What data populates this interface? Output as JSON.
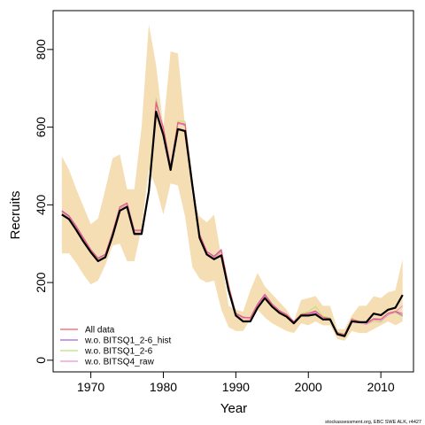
{
  "chart_data": {
    "type": "line",
    "xlabel": "Year",
    "ylabel": "Recruits",
    "xlim": [
      1964.8,
      2014.5
    ],
    "ylim": [
      -30,
      900
    ],
    "xticks": [
      1970,
      1980,
      1990,
      2000,
      2010
    ],
    "yticks": [
      0,
      200,
      400,
      600,
      800
    ],
    "xtick_labels": [
      "1970",
      "1980",
      "1990",
      "2000",
      "2010"
    ],
    "ytick_labels": [
      "0",
      "200",
      "400",
      "600",
      "800"
    ],
    "grid": false,
    "legend_position": "bottom-left",
    "x": [
      1966,
      1967,
      1968,
      1969,
      1970,
      1971,
      1972,
      1973,
      1974,
      1975,
      1976,
      1977,
      1978,
      1979,
      1980,
      1981,
      1982,
      1983,
      1984,
      1985,
      1986,
      1987,
      1988,
      1989,
      1990,
      1991,
      1992,
      1993,
      1994,
      1995,
      1996,
      1997,
      1998,
      1999,
      2000,
      2001,
      2002,
      2003,
      2004,
      2005,
      2006,
      2007,
      2008,
      2009,
      2010,
      2011,
      2012,
      2013
    ],
    "band": {
      "color": "#f5deb3",
      "upper": [
        525,
        490,
        440,
        395,
        350,
        365,
        440,
        520,
        530,
        440,
        440,
        600,
        865,
        760,
        600,
        795,
        790,
        600,
        420,
        370,
        355,
        375,
        265,
        140,
        130,
        125,
        180,
        225,
        190,
        170,
        150,
        130,
        100,
        155,
        160,
        165,
        140,
        140,
        80,
        80,
        115,
        140,
        140,
        165,
        160,
        175,
        180,
        260
      ],
      "lower": [
        275,
        275,
        250,
        220,
        195,
        205,
        245,
        295,
        300,
        255,
        255,
        340,
        490,
        445,
        375,
        455,
        450,
        370,
        240,
        210,
        200,
        205,
        130,
        85,
        75,
        75,
        105,
        130,
        110,
        95,
        85,
        75,
        70,
        95,
        90,
        100,
        90,
        90,
        55,
        50,
        75,
        70,
        70,
        80,
        90,
        100,
        90,
        100
      ]
    },
    "series": [
      {
        "name": "w.o. BITSQ1_2-6_hist",
        "color": "#a561d8",
        "values": [
          385,
          372,
          345,
          315,
          285,
          263,
          273,
          330,
          395,
          405,
          335,
          335,
          430,
          660,
          600,
          500,
          610,
          605,
          460,
          325,
          280,
          268,
          285,
          190,
          120,
          110,
          110,
          145,
          170,
          145,
          128,
          118,
          100,
          118,
          120,
          125,
          110,
          105,
          70,
          65,
          105,
          100,
          95,
          105,
          105,
          120,
          125,
          115
        ]
      },
      {
        "name": "w.o. BITSQ1_2-6",
        "color": "#b8e27a",
        "values": [
          380,
          368,
          342,
          312,
          283,
          260,
          270,
          328,
          392,
          402,
          333,
          333,
          435,
          675,
          595,
          498,
          615,
          615,
          462,
          322,
          278,
          266,
          280,
          195,
          122,
          112,
          108,
          142,
          168,
          143,
          126,
          116,
          98,
          120,
          125,
          138,
          113,
          110,
          72,
          68,
          108,
          98,
          92,
          100,
          98,
          118,
          122,
          112
        ]
      },
      {
        "name": "w.o. BITSQ4_raw",
        "color": "#f28fd0",
        "values": [
          378,
          366,
          340,
          310,
          280,
          258,
          268,
          325,
          390,
          400,
          330,
          330,
          432,
          668,
          590,
          495,
          608,
          608,
          458,
          320,
          276,
          264,
          278,
          192,
          118,
          108,
          106,
          140,
          165,
          140,
          124,
          114,
          96,
          115,
          118,
          122,
          110,
          102,
          68,
          64,
          106,
          96,
          92,
          104,
          102,
          116,
          124,
          140
        ]
      },
      {
        "name": "All data",
        "color": "#f25a6e",
        "values": [
          383,
          370,
          343,
          313,
          284,
          262,
          272,
          329,
          394,
          404,
          334,
          334,
          431,
          664,
          598,
          499,
          612,
          608,
          461,
          324,
          279,
          267,
          283,
          192,
          121,
          111,
          109,
          143,
          168,
          144,
          127,
          117,
          99,
          118,
          121,
          127,
          111,
          107,
          71,
          66,
          106,
          100,
          96,
          107,
          106,
          121,
          126,
          120
        ]
      },
      {
        "name": "",
        "color": "#000000",
        "values": [
          375,
          363,
          335,
          305,
          278,
          255,
          265,
          320,
          385,
          395,
          325,
          325,
          435,
          640,
          580,
          490,
          595,
          590,
          450,
          315,
          272,
          260,
          270,
          180,
          115,
          100,
          100,
          135,
          160,
          138,
          122,
          112,
          95,
          115,
          115,
          118,
          105,
          105,
          67,
          62,
          100,
          98,
          98,
          120,
          116,
          130,
          135,
          125
        ]
      }
    ],
    "final_black_point": {
      "year": 2013,
      "value": 168
    }
  },
  "legend": {
    "items": [
      {
        "label": "All data",
        "color": "#f25a6e"
      },
      {
        "label": "w.o. BITSQ1_2-6_hist",
        "color": "#a561d8"
      },
      {
        "label": "w.o. BITSQ1_2-6",
        "color": "#b8e27a"
      },
      {
        "label": "w.o. BITSQ4_raw",
        "color": "#f28fd0"
      }
    ]
  },
  "credit": "stockassessment.org, EBC SWE ALK, r4427"
}
